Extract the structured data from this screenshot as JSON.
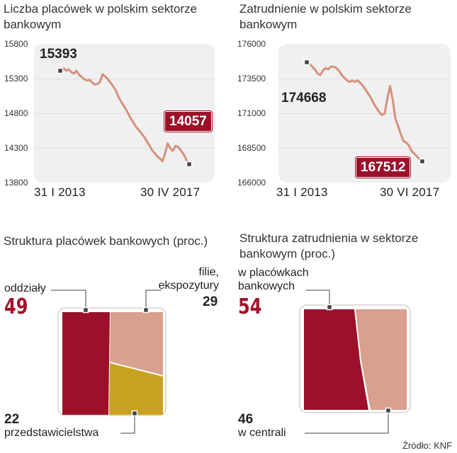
{
  "colors": {
    "line": "#d4917c",
    "accent": "#9c1129",
    "salmon": "#d9a08d",
    "mustard": "#c8a21f",
    "panel": "#f0f0f0"
  },
  "chart_data": [
    {
      "type": "line",
      "title": "Liczba placówek w polskim sektorze bankowym",
      "title_lines": [
        "Liczba placówek w polskim sektorze",
        "bankowym"
      ],
      "ylim": [
        13800,
        15800
      ],
      "yticks": [
        "15800",
        "15300",
        "14800",
        "14300",
        "13800"
      ],
      "x_labels": [
        "31 I 2013",
        "30 IV 2017"
      ],
      "start_value": "15393",
      "end_value": "14057",
      "y": [
        15393,
        15460,
        15420,
        15440,
        15400,
        15380,
        15420,
        15360,
        15330,
        15300,
        15280,
        15290,
        15250,
        15220,
        15230,
        15260,
        15370,
        15340,
        15300,
        15250,
        15200,
        15140,
        15050,
        14980,
        14920,
        14860,
        14790,
        14720,
        14660,
        14600,
        14560,
        14510,
        14460,
        14400,
        14340,
        14270,
        14230,
        14180,
        14150,
        14110,
        14220,
        14370,
        14300,
        14260,
        14330,
        14320,
        14270,
        14220,
        14150,
        14057
      ],
      "grid": true
    },
    {
      "type": "line",
      "title": "Zatrudnienie w polskim sektorze bankowym",
      "title_lines": [
        "Zatrudnienie w polskim sektorze",
        "bankowym"
      ],
      "ylim": [
        166000,
        176000
      ],
      "yticks": [
        "176000",
        "173500",
        "171000",
        "168500",
        "166000"
      ],
      "x_labels": [
        "31 I 2013",
        "30 VI 2017"
      ],
      "start_value": "174668",
      "end_value": "167512",
      "y": [
        174668,
        174600,
        174400,
        174200,
        173900,
        173800,
        174100,
        174300,
        174200,
        174400,
        174400,
        174300,
        174100,
        173800,
        173600,
        173400,
        173300,
        173400,
        173300,
        173400,
        173200,
        173000,
        172700,
        172400,
        172100,
        171700,
        171400,
        171100,
        170900,
        171000,
        172100,
        173000,
        172000,
        170600,
        170100,
        169500,
        169000,
        168900,
        168700,
        168300,
        168100,
        167900,
        167700,
        167512
      ],
      "grid": true
    },
    {
      "type": "pie",
      "title": "Struktura placówek bankowych (proc.)",
      "title_lines": [
        "Struktura placówek bankowych (proc.)"
      ],
      "slices": [
        {
          "name": "oddziały",
          "value": 49,
          "color": "#9c1129"
        },
        {
          "name": "filie, ekspozytury",
          "value": 29,
          "color": "#d9a08d"
        },
        {
          "name": "przedstawicielstwa",
          "value": 22,
          "color": "#c8a21f"
        }
      ]
    },
    {
      "type": "pie",
      "title": "Struktura zatrudnienia w sektorze bankowym (proc.)",
      "title_lines": [
        "Struktura zatrudnienia w sektorze",
        "bankowym (proc.)"
      ],
      "slices": [
        {
          "name": "w placówkach bankowych",
          "value": 54,
          "color": "#9c1129"
        },
        {
          "name": "w centrali",
          "value": 46,
          "color": "#d9a08d"
        }
      ]
    }
  ],
  "labels": {
    "oddzialy_name": "oddziały",
    "oddzialy_value": "49",
    "filie_line1": "filie,",
    "filie_line2": "ekspozytury",
    "filie_value": "29",
    "przed_value": "22",
    "przed_name": "przedstawicielstwa",
    "placowki_line1": "w placówkach",
    "placowki_line2": "bankowych",
    "placowki_value": "54",
    "centrala_value": "46",
    "centrala_name": "w centrali"
  },
  "source": "Źródło: KNF"
}
